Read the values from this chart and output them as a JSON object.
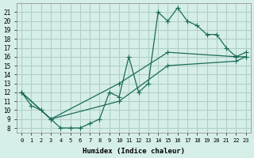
{
  "xlabel": "Humidex (Indice chaleur)",
  "ylabel": "",
  "background_color": "#d6eee8",
  "grid_color": "#b0cfc8",
  "line_color": "#1a6b5a",
  "xlim": [
    -0.5,
    23.5
  ],
  "ylim": [
    7.5,
    22
  ],
  "xticks": [
    0,
    1,
    2,
    3,
    4,
    5,
    6,
    7,
    8,
    9,
    10,
    11,
    12,
    13,
    14,
    15,
    16,
    17,
    18,
    19,
    20,
    21,
    22,
    23
  ],
  "yticks": [
    8,
    9,
    10,
    11,
    12,
    13,
    14,
    15,
    16,
    17,
    18,
    19,
    20,
    21
  ],
  "line1_x": [
    0,
    1,
    2,
    3,
    4,
    5,
    6,
    7,
    8,
    9,
    10,
    11,
    12,
    13,
    14,
    15,
    16,
    17,
    18,
    19,
    20,
    21,
    22,
    23
  ],
  "line1_y": [
    12,
    10.5,
    10,
    9,
    8,
    8,
    8,
    8.5,
    9,
    12,
    11.5,
    16,
    12,
    13,
    21,
    20,
    21.5,
    20,
    19.5,
    18.5,
    18.5,
    17,
    16,
    16
  ],
  "line2_x": [
    0,
    3,
    10,
    15,
    22,
    23
  ],
  "line2_y": [
    12,
    9,
    13,
    16.5,
    16,
    16.5
  ],
  "line3_x": [
    0,
    3,
    10,
    15,
    22,
    23
  ],
  "line3_y": [
    12,
    9,
    11,
    15,
    15.5,
    16
  ]
}
